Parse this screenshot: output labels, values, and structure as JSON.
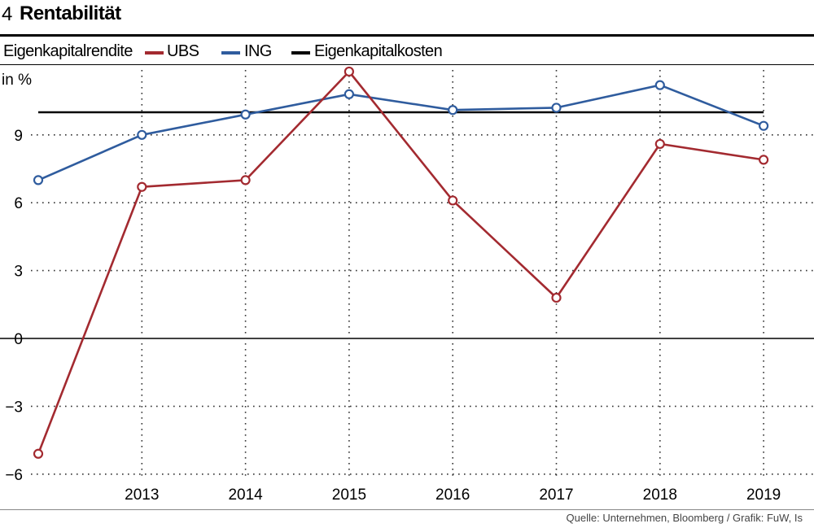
{
  "figure": {
    "number": "4",
    "title": "Rentabilität"
  },
  "legend": {
    "title": "Eigenkapitalrendite",
    "items": [
      {
        "name": "UBS",
        "color": "#a32a30"
      },
      {
        "name": "ING",
        "color": "#2f5c9e"
      },
      {
        "name": "Eigenkapitalkosten",
        "color": "#000000"
      }
    ]
  },
  "source": "Quelle: Unternehmen, Bloomberg / Grafik: FuW, Is",
  "chart_data": {
    "type": "line",
    "title": "Rentabilität",
    "ylabel": "in %",
    "xlabel": "",
    "x": [
      2012,
      2013,
      2014,
      2015,
      2016,
      2017,
      2018,
      2019
    ],
    "xticks": [
      "2013",
      "2014",
      "2015",
      "2016",
      "2017",
      "2018",
      "2019"
    ],
    "yticks": [
      "9",
      "6",
      "3",
      "0",
      "−3",
      "−6"
    ],
    "ytick_values": [
      9,
      6,
      3,
      0,
      -3,
      -6
    ],
    "ylim": [
      -6.2,
      12
    ],
    "grid": "dotted",
    "series": [
      {
        "name": "UBS",
        "color": "#a32a30",
        "values": [
          -5.1,
          6.7,
          7.0,
          11.8,
          6.1,
          1.8,
          8.6,
          7.9
        ]
      },
      {
        "name": "ING",
        "color": "#2f5c9e",
        "values": [
          7.0,
          9.0,
          9.9,
          10.8,
          10.1,
          10.2,
          11.2,
          9.4
        ]
      },
      {
        "name": "Eigenkapitalkosten",
        "color": "#000000",
        "values": [
          10.0,
          10.0,
          10.0,
          10.0,
          10.0,
          10.0,
          10.0,
          10.0
        ]
      }
    ]
  }
}
